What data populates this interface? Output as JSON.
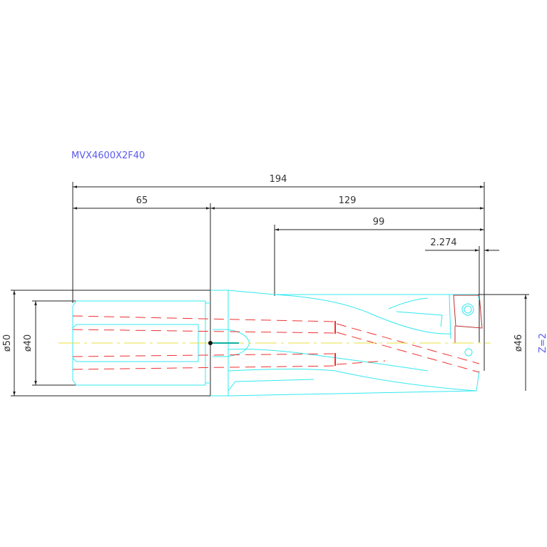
{
  "title": "MVX4600X2F40",
  "dimensions": {
    "overall_length": "194",
    "shank_length": "65",
    "body_length": "129",
    "flute_length": "99",
    "tip_offset": "2.274",
    "shank_flange_diameter": "ø50",
    "shank_diameter": "ø40",
    "drill_diameter": "ø46"
  },
  "flutes": "Z=2",
  "colors": {
    "outline": "#33e8f0",
    "coolant": "#f03030",
    "centerline": "#e8e040",
    "dimension": "#222222",
    "label": "#5a5af0"
  }
}
